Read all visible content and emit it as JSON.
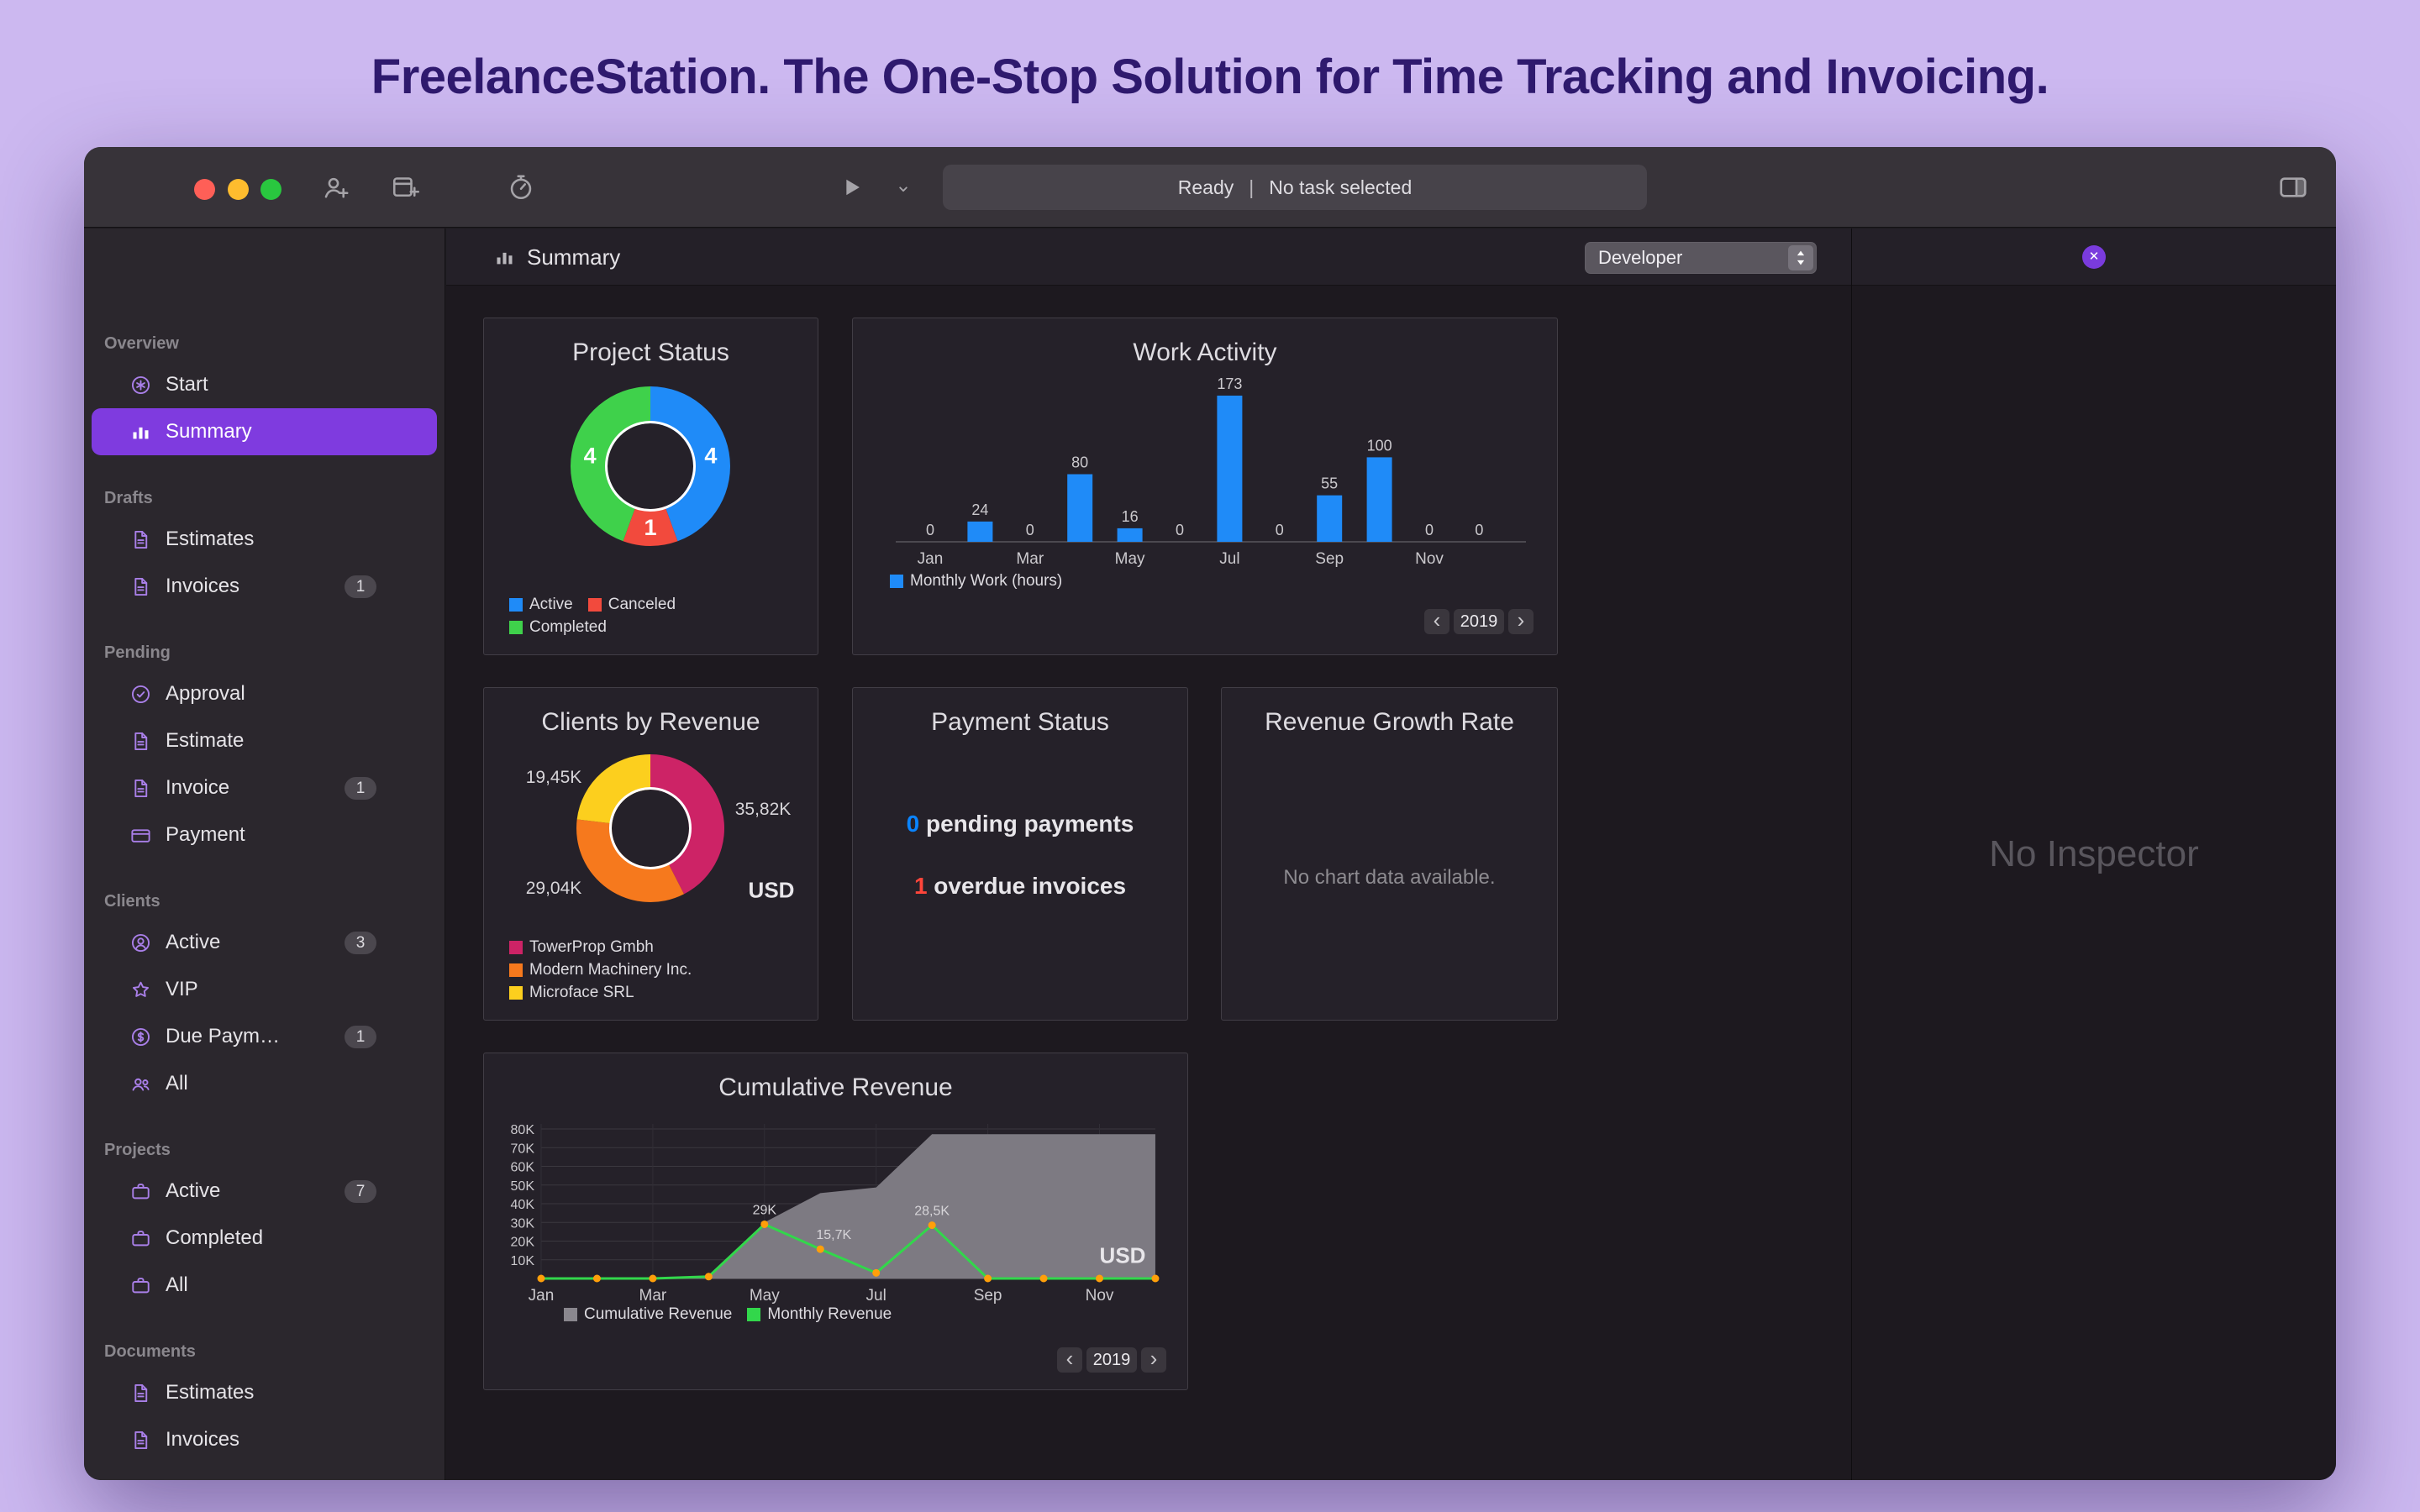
{
  "headline": "FreelanceStation. The One-Stop Solution for Time Tracking and Invoicing.",
  "titlebar": {
    "status_ready": "Ready",
    "status_separator": "|",
    "status_task": "No task selected"
  },
  "sidebar": {
    "sections": [
      {
        "label": "Overview",
        "items": [
          {
            "label": "Start",
            "icon": "asterisk-circle-icon"
          },
          {
            "label": "Summary",
            "icon": "chart-bar-icon",
            "selected": true
          }
        ]
      },
      {
        "label": "Drafts",
        "items": [
          {
            "label": "Estimates",
            "icon": "document-icon"
          },
          {
            "label": "Invoices",
            "icon": "document-icon",
            "badge": "1"
          }
        ]
      },
      {
        "label": "Pending",
        "items": [
          {
            "label": "Approval",
            "icon": "seal-check-icon"
          },
          {
            "label": "Estimate",
            "icon": "document-icon"
          },
          {
            "label": "Invoice",
            "icon": "document-icon",
            "badge": "1"
          },
          {
            "label": "Payment",
            "icon": "credit-card-icon"
          }
        ]
      },
      {
        "label": "Clients",
        "items": [
          {
            "label": "Active",
            "icon": "person-circle-icon",
            "badge": "3"
          },
          {
            "label": "VIP",
            "icon": "star-icon"
          },
          {
            "label": "Due Paym…",
            "icon": "dollar-circle-icon",
            "badge": "1"
          },
          {
            "label": "All",
            "icon": "people-icon"
          }
        ]
      },
      {
        "label": "Projects",
        "items": [
          {
            "label": "Active",
            "icon": "briefcase-icon",
            "badge": "7"
          },
          {
            "label": "Completed",
            "icon": "briefcase-icon"
          },
          {
            "label": "All",
            "icon": "briefcase-icon"
          }
        ]
      },
      {
        "label": "Documents",
        "items": [
          {
            "label": "Estimates",
            "icon": "document-icon"
          },
          {
            "label": "Invoices",
            "icon": "document-icon"
          }
        ]
      }
    ]
  },
  "content_header": {
    "title": "Summary",
    "filter_value": "Developer"
  },
  "inspector": {
    "placeholder": "No Inspector"
  },
  "payment_status": {
    "title": "Payment Status",
    "pending_count": "0",
    "pending_label": " pending payments",
    "overdue_count": "1",
    "overdue_label": " overdue invoices",
    "pending_color": "#0a84ff",
    "overdue_color": "#ff453a"
  },
  "revenue_growth": {
    "title": "Revenue Growth Rate",
    "empty_message": "No chart data available."
  },
  "chart_data": [
    {
      "type": "pie",
      "title": "Project Status",
      "labels": [
        "Active",
        "Canceled",
        "Completed"
      ],
      "values": [
        4,
        1,
        4
      ],
      "colors": [
        "#1f8bf8",
        "#f24a3d",
        "#3fd14b"
      ]
    },
    {
      "type": "bar",
      "title": "Work Activity",
      "categories": [
        "Jan",
        "Feb",
        "Mar",
        "Apr",
        "May",
        "Jun",
        "Jul",
        "Aug",
        "Sep",
        "Oct",
        "Nov",
        "Dec"
      ],
      "values": [
        0,
        24,
        0,
        80,
        16,
        0,
        173,
        0,
        55,
        100,
        0,
        0
      ],
      "bar_color": "#1f8bf8",
      "legend": "Monthly Work (hours)",
      "ylabel": "",
      "year": "2019"
    },
    {
      "type": "pie",
      "title": "Clients by Revenue",
      "labels": [
        "TowerProp Gmbh",
        "Modern Machinery Inc.",
        "Microface SRL"
      ],
      "values": [
        35.82,
        29.04,
        19.45
      ],
      "value_labels": [
        "35,82K",
        "29,04K",
        "19,45K"
      ],
      "colors": [
        "#cd2366",
        "#f6791d",
        "#fccf1e"
      ],
      "currency": "USD"
    },
    {
      "type": "line",
      "title": "Cumulative Revenue",
      "x": [
        "Jan",
        "Feb",
        "Mar",
        "Apr",
        "May",
        "Jun",
        "Jul",
        "Aug",
        "Sep",
        "Oct",
        "Nov",
        "Dec"
      ],
      "series": [
        {
          "name": "Cumulative Revenue",
          "type": "area",
          "color": "#7d7a82",
          "values": [
            0,
            0,
            0,
            1,
            30,
            45.7,
            48.7,
            77.2,
            77.2,
            77.2,
            77.2,
            77.2
          ]
        },
        {
          "name": "Monthly Revenue",
          "type": "line",
          "color": "#32d74b",
          "values": [
            0,
            0,
            0,
            1,
            29,
            15.7,
            3,
            28.5,
            0,
            0,
            0,
            0
          ]
        }
      ],
      "point_color": "#ff9f0a",
      "annotations": [
        {
          "index": 4,
          "text": "29K"
        },
        {
          "index": 5,
          "text": "15,7K"
        },
        {
          "index": 7,
          "text": "28,5K"
        }
      ],
      "yticks": [
        "10K",
        "20K",
        "30K",
        "40K",
        "50K",
        "60K",
        "70K",
        "80K"
      ],
      "ylim": [
        0,
        80
      ],
      "grid": true,
      "currency": "USD",
      "year": "2019"
    }
  ]
}
